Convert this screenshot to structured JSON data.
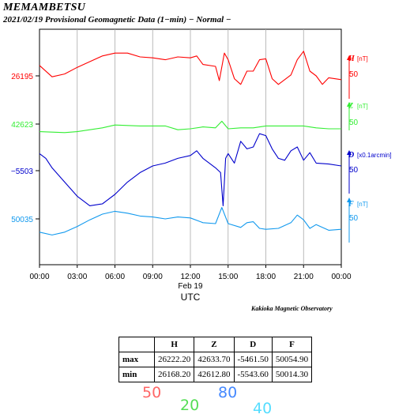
{
  "header": {
    "station": "MEMAMBETSU",
    "subtitle": "2021/02/19  Provisional Geomagnetic Data (1−min)  − Normal −"
  },
  "credit": "Kakioka Magnetic Observatory",
  "chart_data": {
    "type": "line",
    "xlabel": "UTC",
    "date_label": "Feb 19",
    "x_ticks": [
      "00:00",
      "03:00",
      "06:00",
      "09:00",
      "12:00",
      "15:00",
      "18:00",
      "21:00",
      "00:00"
    ],
    "x_range_hours": [
      0,
      24
    ],
    "grid": true,
    "series": [
      {
        "name": "H",
        "unit": "[nT]",
        "scale_label": "50",
        "left_label": "26195",
        "color": "#ff0000",
        "points": [
          [
            0,
            26206
          ],
          [
            1,
            26194
          ],
          [
            2,
            26197
          ],
          [
            3,
            26204
          ],
          [
            4,
            26210
          ],
          [
            5,
            26216
          ],
          [
            6,
            26219
          ],
          [
            7,
            26219
          ],
          [
            8,
            26215
          ],
          [
            9,
            26214
          ],
          [
            10,
            26212
          ],
          [
            11,
            26215
          ],
          [
            12,
            26214
          ],
          [
            12.5,
            26216
          ],
          [
            13,
            26207
          ],
          [
            14,
            26205
          ],
          [
            14.3,
            26190
          ],
          [
            14.7,
            26219
          ],
          [
            15,
            26212
          ],
          [
            15.5,
            26192
          ],
          [
            16,
            26186
          ],
          [
            16.5,
            26200
          ],
          [
            17,
            26200
          ],
          [
            17.5,
            26212
          ],
          [
            18,
            26213
          ],
          [
            18.5,
            26192
          ],
          [
            19,
            26186
          ],
          [
            20,
            26196
          ],
          [
            20.5,
            26212
          ],
          [
            21,
            26221
          ],
          [
            21.5,
            26200
          ],
          [
            22,
            26195
          ],
          [
            22.5,
            26186
          ],
          [
            23,
            26193
          ],
          [
            24,
            26191
          ]
        ]
      },
      {
        "name": "Z",
        "unit": "[nT]",
        "scale_label": "50",
        "left_label": "42623",
        "color": "#33ee33",
        "points": [
          [
            0,
            42615
          ],
          [
            2,
            42614
          ],
          [
            3,
            42615
          ],
          [
            5,
            42619
          ],
          [
            6,
            42622
          ],
          [
            8,
            42621
          ],
          [
            10,
            42621
          ],
          [
            11,
            42617
          ],
          [
            12,
            42618
          ],
          [
            13,
            42620
          ],
          [
            14,
            42619
          ],
          [
            14.5,
            42626
          ],
          [
            15,
            42618
          ],
          [
            16,
            42619
          ],
          [
            17,
            42619
          ],
          [
            18,
            42621
          ],
          [
            19,
            42621
          ],
          [
            20,
            42621
          ],
          [
            21,
            42621
          ],
          [
            22,
            42619
          ],
          [
            23,
            42618
          ],
          [
            24,
            42618
          ]
        ]
      },
      {
        "name": "D",
        "unit": "[x0.1arcmin]",
        "scale_label": "50",
        "left_label": "−5503",
        "color": "#0000cc",
        "points": [
          [
            0,
            -5485
          ],
          [
            0.5,
            -5490
          ],
          [
            1,
            -5500
          ],
          [
            2,
            -5515
          ],
          [
            3,
            -5530
          ],
          [
            4,
            -5540
          ],
          [
            5,
            -5538
          ],
          [
            6,
            -5528
          ],
          [
            7,
            -5515
          ],
          [
            8,
            -5505
          ],
          [
            9,
            -5498
          ],
          [
            10,
            -5495
          ],
          [
            11,
            -5490
          ],
          [
            12,
            -5487
          ],
          [
            12.5,
            -5482
          ],
          [
            13,
            -5490
          ],
          [
            14,
            -5500
          ],
          [
            14.4,
            -5505
          ],
          [
            14.6,
            -5540
          ],
          [
            14.8,
            -5490
          ],
          [
            15,
            -5485
          ],
          [
            15.5,
            -5495
          ],
          [
            16,
            -5472
          ],
          [
            16.5,
            -5480
          ],
          [
            17,
            -5478
          ],
          [
            17.5,
            -5464
          ],
          [
            18,
            -5466
          ],
          [
            18.5,
            -5480
          ],
          [
            19,
            -5490
          ],
          [
            19.5,
            -5492
          ],
          [
            20,
            -5482
          ],
          [
            20.5,
            -5478
          ],
          [
            21,
            -5492
          ],
          [
            21.5,
            -5484
          ],
          [
            22,
            -5495
          ],
          [
            23,
            -5496
          ],
          [
            24,
            -5498
          ]
        ]
      },
      {
        "name": "F",
        "unit": "[nT]",
        "scale_label": "50",
        "left_label": "50035",
        "color": "#1199ee",
        "points": [
          [
            0,
            50021
          ],
          [
            1,
            50018
          ],
          [
            2,
            50021
          ],
          [
            3,
            50027
          ],
          [
            4,
            50034
          ],
          [
            5,
            50040
          ],
          [
            6,
            50043
          ],
          [
            7,
            50041
          ],
          [
            8,
            50038
          ],
          [
            9,
            50037
          ],
          [
            10,
            50035
          ],
          [
            11,
            50037
          ],
          [
            12,
            50036
          ],
          [
            13,
            50031
          ],
          [
            14,
            50030
          ],
          [
            14.5,
            50047
          ],
          [
            15,
            50030
          ],
          [
            16,
            50026
          ],
          [
            16.5,
            50031
          ],
          [
            17,
            50032
          ],
          [
            17.5,
            50025
          ],
          [
            18,
            50024
          ],
          [
            19,
            50025
          ],
          [
            20,
            50031
          ],
          [
            20.5,
            50039
          ],
          [
            21,
            50034
          ],
          [
            21.5,
            50025
          ],
          [
            22,
            50029
          ],
          [
            23,
            50023
          ],
          [
            24,
            50024
          ]
        ]
      }
    ]
  },
  "stats": {
    "headers": [
      "H",
      "Z",
      "D",
      "F"
    ],
    "rows": [
      {
        "label": "max",
        "values": [
          "26222.20",
          "42633.70",
          "-5461.50",
          "50054.90"
        ]
      },
      {
        "label": "min",
        "values": [
          "26168.20",
          "42612.80",
          "-5543.60",
          "50014.30"
        ]
      }
    ]
  },
  "handwritten": [
    {
      "text": "50",
      "color": "#ff6666"
    },
    {
      "text": "20",
      "color": "#55dd55"
    },
    {
      "text": "80",
      "color": "#4488ff"
    },
    {
      "text": "40",
      "color": "#55ddff"
    }
  ]
}
